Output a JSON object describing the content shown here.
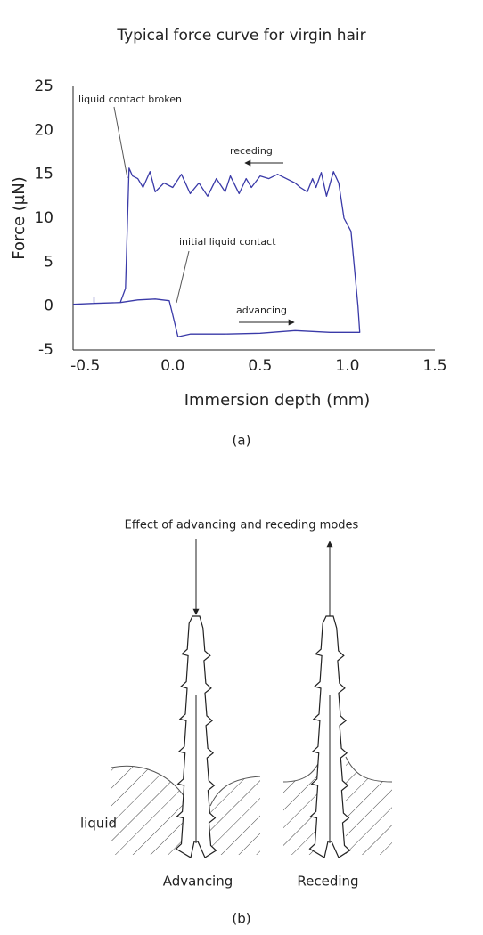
{
  "chart_data": {
    "type": "line",
    "title": "Typical force curve for virgin hair",
    "x_label": "Immersion depth (mm)",
    "y_label": "Force (µN)",
    "caption": "(a)",
    "color": "#3a3aa8",
    "grid": false,
    "xlim": [
      -0.57,
      1.5
    ],
    "ylim": [
      -5,
      25
    ],
    "xticks": [
      -0.5,
      {
        "value": 0,
        "label": "0.0"
      },
      0.5,
      {
        "value": 1,
        "label": "1.0"
      },
      1.5
    ],
    "yticks": [
      -5,
      0,
      5,
      10,
      15,
      20,
      25
    ],
    "annotations": [
      {
        "text": "liquid contact broken",
        "x": -0.25,
        "y": 15.5
      },
      {
        "text": "initial liquid contact",
        "x": 0.0,
        "y": 0.2
      },
      {
        "text": "receding"
      },
      {
        "text": "advancing"
      }
    ],
    "x": [
      -0.57,
      -0.45,
      -0.45,
      -0.45,
      -0.3,
      -0.2,
      -0.1,
      -0.02,
      0.0,
      0.03,
      0.1,
      0.3,
      0.5,
      0.7,
      0.9,
      1.07,
      1.06,
      1.02,
      0.98,
      0.95,
      0.92,
      0.88,
      0.85,
      0.82,
      0.8,
      0.77,
      0.73,
      0.7,
      0.65,
      0.6,
      0.55,
      0.5,
      0.45,
      0.42,
      0.38,
      0.33,
      0.3,
      0.25,
      0.2,
      0.15,
      0.1,
      0.05,
      0.0,
      -0.05,
      -0.1,
      -0.13,
      -0.17,
      -0.2,
      -0.23,
      -0.25,
      -0.27,
      -0.3
    ],
    "values": [
      0.2,
      0.3,
      1.0,
      0.3,
      0.4,
      0.7,
      0.8,
      0.6,
      -1.0,
      -3.5,
      -3.2,
      -3.2,
      -3.1,
      -2.8,
      -3.0,
      -3.0,
      0,
      8.5,
      10,
      14,
      15.3,
      12.5,
      15.2,
      13.5,
      14.5,
      13,
      13.5,
      14,
      14.5,
      15,
      14.5,
      14.8,
      13.5,
      14.5,
      12.8,
      14.8,
      13,
      14.5,
      12.5,
      14,
      12.8,
      15,
      13.5,
      14,
      13,
      15.3,
      13.5,
      14.5,
      14.8,
      15.7,
      2,
      0.4
    ]
  },
  "diagram": {
    "title": "Effect of advancing and receding modes",
    "labels": [
      "liquid",
      "Advancing",
      "Receding"
    ],
    "caption": "(b)"
  }
}
